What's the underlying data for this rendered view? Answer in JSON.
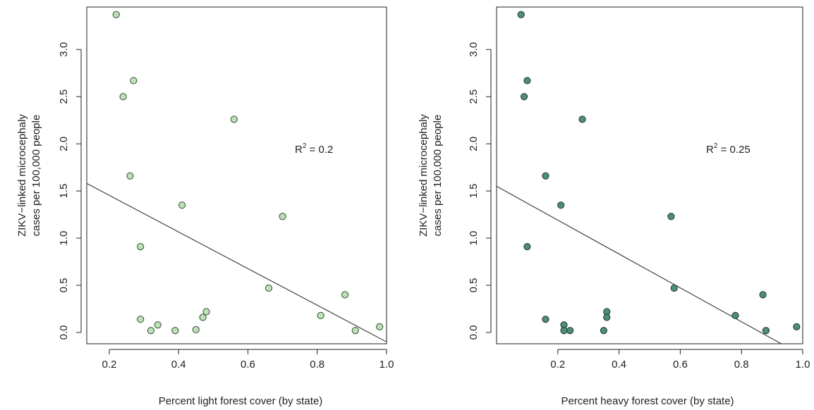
{
  "chart_data": [
    {
      "type": "scatter",
      "xlabel": "Percent light forest cover (by state)",
      "ylabel_line1": "ZIKV−linked microcephaly",
      "ylabel_line2": "cases per 100,000 people",
      "xlim": [
        0.135,
        1.0
      ],
      "ylim": [
        -0.12,
        3.45
      ],
      "xticks": [
        0.2,
        0.4,
        0.6,
        0.8,
        1.0
      ],
      "xtick_labels": [
        "0.2",
        "0.4",
        "0.6",
        "0.8",
        "1.0"
      ],
      "yticks": [
        0.0,
        0.5,
        1.0,
        1.5,
        2.0,
        2.5,
        3.0
      ],
      "ytick_labels": [
        "0.0",
        "0.5",
        "1.0",
        "1.5",
        "2.0",
        "2.5",
        "3.0"
      ],
      "r2_label": "R",
      "r2_sup": "2",
      "r2_value": " = 0.2",
      "point_fill": "#b9e3b3",
      "point_stroke": "#3a4a3a",
      "fit_line": {
        "x0": 0.135,
        "y0": 1.58,
        "x1": 1.0,
        "y1": -0.1
      },
      "points": [
        {
          "x": 0.22,
          "y": 3.37
        },
        {
          "x": 0.27,
          "y": 2.67
        },
        {
          "x": 0.24,
          "y": 2.5
        },
        {
          "x": 0.56,
          "y": 2.26
        },
        {
          "x": 0.26,
          "y": 1.66
        },
        {
          "x": 0.41,
          "y": 1.35
        },
        {
          "x": 0.7,
          "y": 1.23
        },
        {
          "x": 0.29,
          "y": 0.91
        },
        {
          "x": 0.66,
          "y": 0.47
        },
        {
          "x": 0.88,
          "y": 0.4
        },
        {
          "x": 0.48,
          "y": 0.22
        },
        {
          "x": 0.81,
          "y": 0.18
        },
        {
          "x": 0.47,
          "y": 0.16
        },
        {
          "x": 0.29,
          "y": 0.14
        },
        {
          "x": 0.34,
          "y": 0.08
        },
        {
          "x": 0.98,
          "y": 0.06
        },
        {
          "x": 0.32,
          "y": 0.02
        },
        {
          "x": 0.45,
          "y": 0.03
        },
        {
          "x": 0.39,
          "y": 0.02
        },
        {
          "x": 0.91,
          "y": 0.02
        }
      ]
    },
    {
      "type": "scatter",
      "xlabel": "Percent heavy forest cover (by state)",
      "ylabel_line1": "ZIKV−linked microcephaly",
      "ylabel_line2": "cases per 100,000 people",
      "xlim": [
        0.0,
        1.0
      ],
      "ylim": [
        -0.12,
        3.45
      ],
      "xticks": [
        0.2,
        0.4,
        0.6,
        0.8,
        1.0
      ],
      "xtick_labels": [
        "0.2",
        "0.4",
        "0.6",
        "0.8",
        "1.0"
      ],
      "yticks": [
        0.0,
        0.5,
        1.0,
        1.5,
        2.0,
        2.5,
        3.0
      ],
      "ytick_labels": [
        "0.0",
        "0.5",
        "1.0",
        "1.5",
        "2.0",
        "2.5",
        "3.0"
      ],
      "r2_label": "R",
      "r2_sup": "2",
      "r2_value": " = 0.25",
      "point_fill": "#4f8c7a",
      "point_stroke": "#1f3a31",
      "fit_line": {
        "x0": 0.0,
        "y0": 1.55,
        "x1": 0.93,
        "y1": -0.12
      },
      "points": [
        {
          "x": 0.08,
          "y": 3.37
        },
        {
          "x": 0.1,
          "y": 2.67
        },
        {
          "x": 0.09,
          "y": 2.5
        },
        {
          "x": 0.28,
          "y": 2.26
        },
        {
          "x": 0.16,
          "y": 1.66
        },
        {
          "x": 0.21,
          "y": 1.35
        },
        {
          "x": 0.57,
          "y": 1.23
        },
        {
          "x": 0.1,
          "y": 0.91
        },
        {
          "x": 0.58,
          "y": 0.47
        },
        {
          "x": 0.87,
          "y": 0.4
        },
        {
          "x": 0.36,
          "y": 0.22
        },
        {
          "x": 0.78,
          "y": 0.18
        },
        {
          "x": 0.36,
          "y": 0.16
        },
        {
          "x": 0.16,
          "y": 0.14
        },
        {
          "x": 0.22,
          "y": 0.08
        },
        {
          "x": 0.98,
          "y": 0.06
        },
        {
          "x": 0.24,
          "y": 0.02
        },
        {
          "x": 0.35,
          "y": 0.02
        },
        {
          "x": 0.22,
          "y": 0.02
        },
        {
          "x": 0.88,
          "y": 0.02
        }
      ]
    }
  ]
}
